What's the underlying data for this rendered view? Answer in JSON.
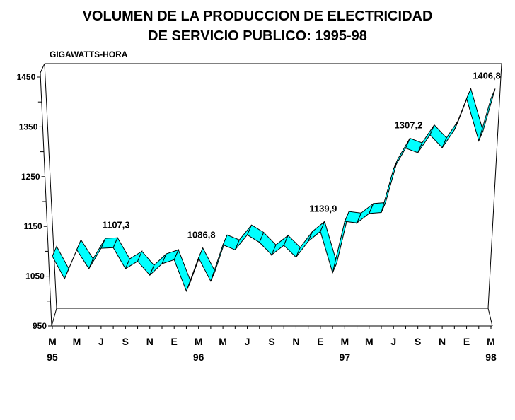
{
  "chart_data": {
    "type": "line",
    "style": "3d-ribbon",
    "title": [
      "VOLUMEN  DE LA PRODUCCION DE ELECTRICIDAD",
      "DE SERVICIO PUBLICO: 1995-98"
    ],
    "ylabel": "GIGAWATTS-HORA",
    "ylim": [
      950,
      1450
    ],
    "yticks": [
      "950",
      "1050",
      "1150",
      "1250",
      "1350",
      "1450"
    ],
    "xtick_labels": [
      "M",
      "M",
      "J",
      "S",
      "N",
      "E",
      "M",
      "M",
      "J",
      "S",
      "N",
      "E",
      "M",
      "M",
      "J",
      "S",
      "N",
      "E",
      "M"
    ],
    "year_labels": [
      {
        "label": "95",
        "index": 0
      },
      {
        "label": "96",
        "index": 12
      },
      {
        "label": "97",
        "index": 24
      },
      {
        "label": "98",
        "index": 36
      }
    ],
    "x": [
      "Mar-95",
      "Apr-95",
      "May-95",
      "Jun-95",
      "Jul-95",
      "Aug-95",
      "Sep-95",
      "Oct-95",
      "Nov-95",
      "Dec-95",
      "Jan-96",
      "Feb-96",
      "Mar-96",
      "Apr-96",
      "May-96",
      "Jun-96",
      "Jul-96",
      "Aug-96",
      "Sep-96",
      "Oct-96",
      "Nov-96",
      "Dec-96",
      "Jan-97",
      "Feb-97",
      "Mar-97",
      "Apr-97",
      "May-97",
      "Jun-97",
      "Jul-97",
      "Aug-97",
      "Sep-97",
      "Oct-97",
      "Nov-97",
      "Dec-97",
      "Jan-98",
      "Feb-98",
      "Mar-98"
    ],
    "values": [
      1090,
      1045,
      1103,
      1065,
      1106,
      1107.3,
      1065,
      1080,
      1052,
      1075,
      1083,
      1020,
      1086.8,
      1040,
      1113,
      1103,
      1133,
      1118,
      1093,
      1112,
      1088,
      1120,
      1139.9,
      1057,
      1160,
      1157,
      1176,
      1178,
      1265,
      1307.2,
      1298,
      1334,
      1308,
      1344,
      1406.8,
      1322,
      1406.8
    ],
    "annotations": [
      {
        "text": "1107,3",
        "index": 5
      },
      {
        "text": "1086,8",
        "index": 12
      },
      {
        "text": "1139,9",
        "index": 22
      },
      {
        "text": "1307,2",
        "index": 29
      },
      {
        "text": "1406,8",
        "index": 36
      }
    ],
    "series_color": "#00ffff",
    "grid": false
  }
}
